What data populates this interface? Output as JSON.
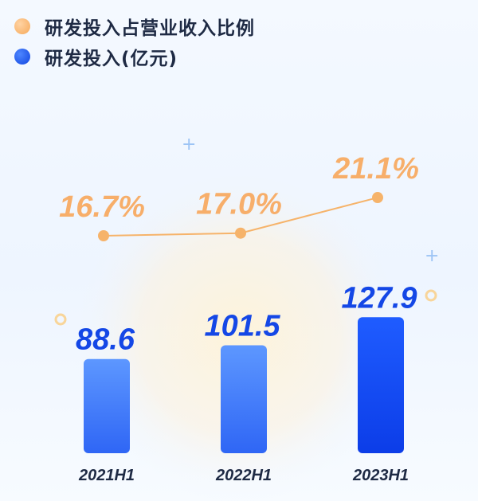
{
  "legend": {
    "ratio_label": "研发投入占营业收入比例",
    "invest_label": "研发投入(亿元)"
  },
  "colors": {
    "ratio": "#f6b36a",
    "ratio_text": "#f7a65a",
    "bar_top": "#5d97ff",
    "bar_bottom": "#2f66f5",
    "bar_last_top": "#1f5cff",
    "bar_last_bottom": "#0c3de8",
    "value_text": "#1447e6"
  },
  "chart_data": {
    "type": "bar",
    "categories": [
      "2021H1",
      "2022H1",
      "2023H1"
    ],
    "series": [
      {
        "name": "研发投入(亿元)",
        "type": "bar",
        "values": [
          88.6,
          101.5,
          127.9
        ],
        "labels": [
          "88.6",
          "101.5",
          "127.9"
        ]
      },
      {
        "name": "研发投入占营业收入比例",
        "type": "line",
        "values": [
          16.7,
          17.0,
          21.1
        ],
        "labels": [
          "16.7%",
          "17.0%",
          "21.1%"
        ]
      }
    ],
    "xlabel": "",
    "ylabel": "",
    "grid": false,
    "legend_position": "top-left"
  }
}
